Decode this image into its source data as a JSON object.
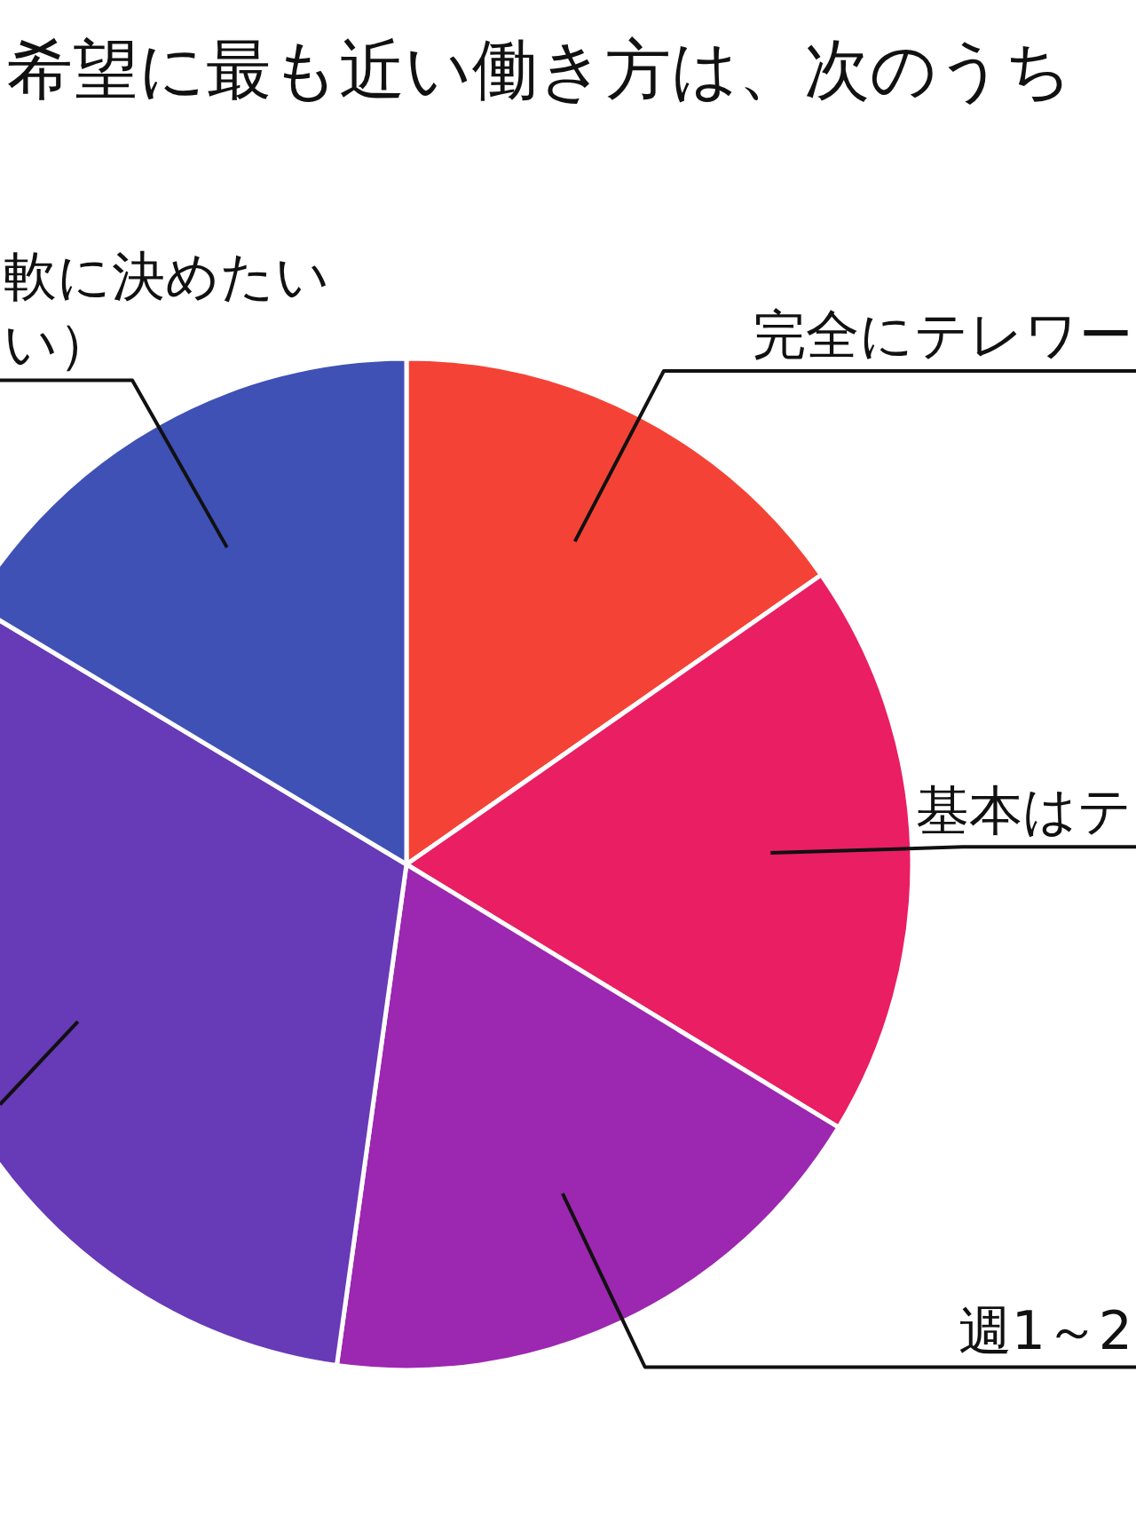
{
  "chart_data": {
    "type": "pie",
    "title": "希望に最も近い働き方は、次のうち",
    "categories": [
      "完全にテレワー",
      "基本はテ",
      "週1～2",
      null,
      "軟に決めたいい）"
    ],
    "values": [
      15.3,
      18.4,
      18.5,
      31.4,
      16.4
    ],
    "colors": [
      "#f44336",
      "#e91e63",
      "#9c27b0",
      "#673ab7",
      "#3f51b5"
    ]
  }
}
